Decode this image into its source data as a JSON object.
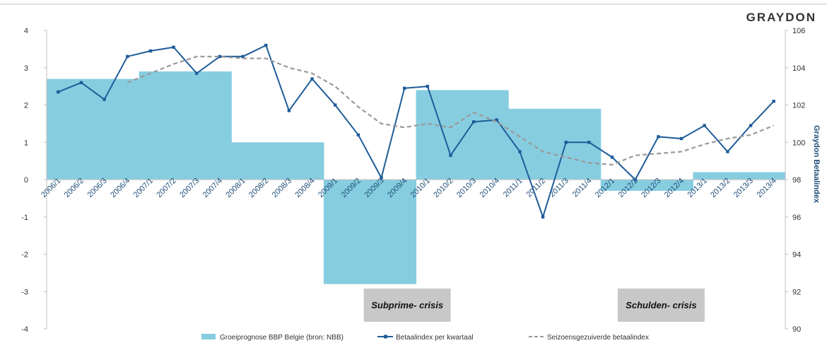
{
  "logo": {
    "text": "GRAYDON"
  },
  "chart_data": {
    "type": "bar",
    "categories": [
      "2006/1",
      "2006/2",
      "2006/3",
      "2006/4",
      "2007/1",
      "2007/2",
      "2007/3",
      "2007/4",
      "2008/1",
      "2008/2",
      "2008/3",
      "2008/4",
      "2009/1",
      "2009/2",
      "2009/3",
      "2009/4",
      "2010/1",
      "2010/2",
      "2010/3",
      "2010/4",
      "2011/1",
      "2011/2",
      "2011/3",
      "2011/4",
      "2012/1",
      "2012/2",
      "2012/3",
      "2012/4",
      "2013/1",
      "2013/2",
      "2013/3",
      "2013/4"
    ],
    "ylim": [
      -4,
      4
    ],
    "y_ticks": [
      4,
      3,
      2,
      1,
      0,
      -1,
      -2,
      -3,
      -4
    ],
    "y2lim": [
      90,
      106
    ],
    "y2_ticks": [
      106,
      104,
      102,
      100,
      98,
      96,
      94,
      92,
      90
    ],
    "y2label": "Graydon Betaalindex",
    "legend_position": "bottom",
    "series": [
      {
        "name": "Groeiprognose BBP Belgie (bron: NBB)",
        "type": "bar",
        "axis": "left",
        "color": "#87cde0",
        "values": [
          2.7,
          2.7,
          2.7,
          2.7,
          2.9,
          2.9,
          2.9,
          2.9,
          1.0,
          1.0,
          1.0,
          1.0,
          -2.8,
          -2.8,
          -2.8,
          -2.8,
          2.4,
          2.4,
          2.4,
          2.4,
          1.9,
          1.9,
          1.9,
          1.9,
          -0.3,
          -0.3,
          -0.3,
          -0.3,
          0.2,
          0.2,
          0.2,
          0.2
        ]
      },
      {
        "name": "Betaalindex per kwartaal",
        "type": "line",
        "axis": "right",
        "color": "#1f5c99",
        "values": [
          102.7,
          103.2,
          102.3,
          104.6,
          104.9,
          105.1,
          103.7,
          104.6,
          104.6,
          105.2,
          101.7,
          103.4,
          102.0,
          100.4,
          98.1,
          102.9,
          103.0,
          99.3,
          101.1,
          101.2,
          99.5,
          96.0,
          100.0,
          100.0,
          99.2,
          98.0,
          100.3,
          100.2,
          100.9,
          99.5,
          100.9,
          102.2
        ]
      },
      {
        "name": "Seizoensgezuiverde betaalindex",
        "type": "line",
        "axis": "right",
        "color": "#999999",
        "dashed": true,
        "values": [
          null,
          null,
          null,
          103.2,
          103.7,
          104.2,
          104.6,
          104.6,
          104.5,
          104.5,
          104.0,
          103.7,
          103.0,
          101.9,
          101.0,
          100.8,
          101.0,
          100.8,
          101.6,
          101.1,
          100.3,
          99.5,
          99.2,
          98.9,
          98.8,
          99.3,
          99.4,
          99.5,
          99.9,
          100.2,
          100.4,
          100.9
        ]
      }
    ],
    "annotations": [
      {
        "text": "Subprime- crisis",
        "anchor_category": "2009/4",
        "bg_color": "#c8c8c8"
      },
      {
        "text": "Schulden- crisis",
        "anchor_category": "2012/3",
        "bg_color": "#c8c8c8"
      }
    ]
  }
}
